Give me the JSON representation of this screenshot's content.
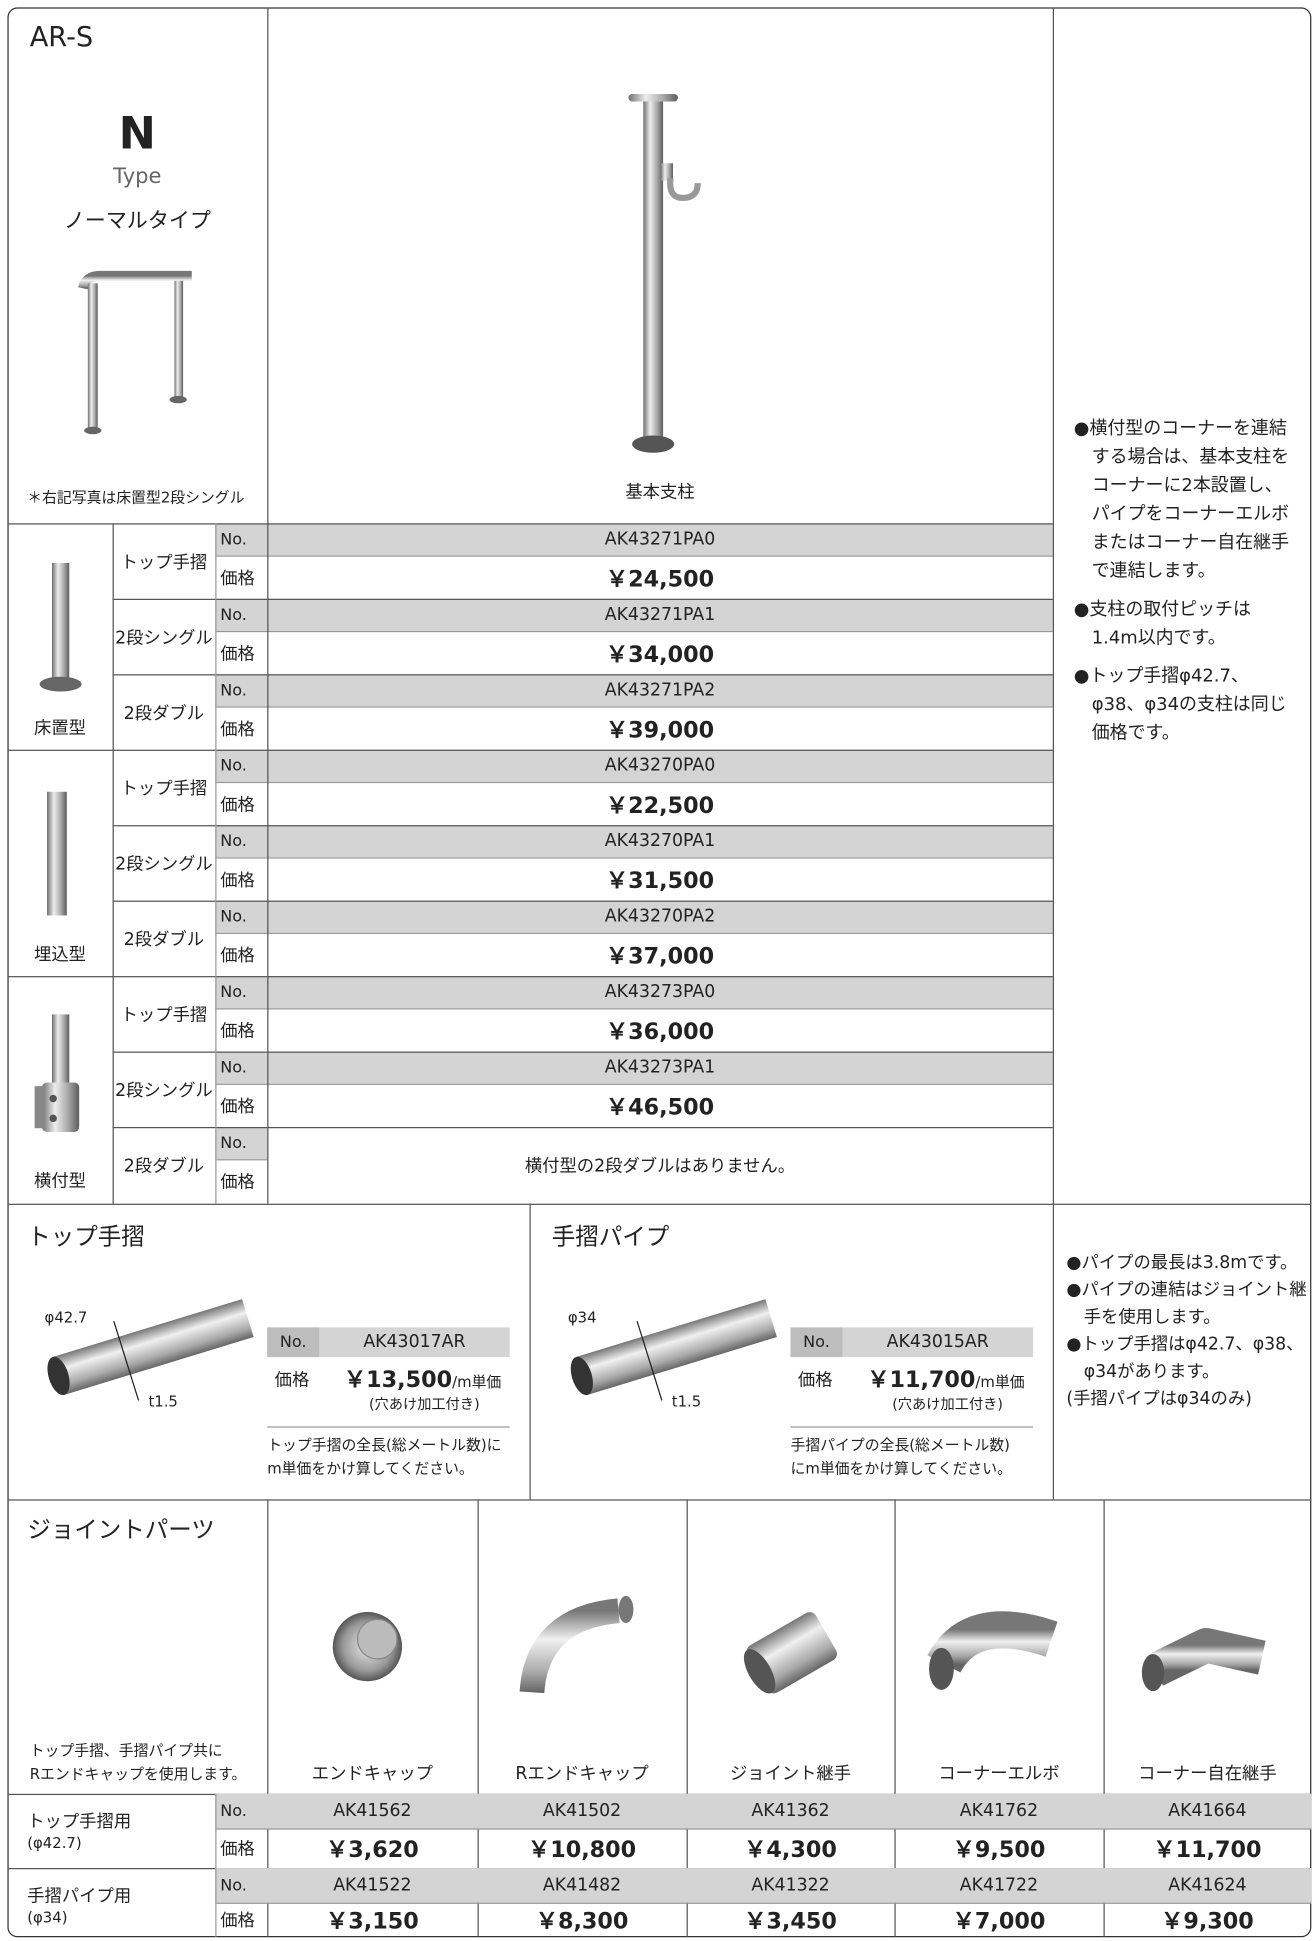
{
  "labels": {
    "no": "No.",
    "price": "価格"
  },
  "header": {
    "series": "AR-S",
    "type_letter": "N",
    "type_word": "Type",
    "type_name": "ノーマルタイプ",
    "photo_note": "＊右記写真は床置型2段シングル",
    "post_caption": "基本支柱"
  },
  "posts": {
    "groups": [
      {
        "name": "床置型",
        "rows": [
          {
            "name": "トップ手摺",
            "no": "AK43271PA0",
            "price": "￥24,500"
          },
          {
            "name": "2段シングル",
            "no": "AK43271PA1",
            "price": "￥34,000"
          },
          {
            "name": "2段ダブル",
            "no": "AK43271PA2",
            "price": "￥39,000"
          }
        ]
      },
      {
        "name": "埋込型",
        "rows": [
          {
            "name": "トップ手摺",
            "no": "AK43270PA0",
            "price": "￥22,500"
          },
          {
            "name": "2段シングル",
            "no": "AK43270PA1",
            "price": "￥31,500"
          },
          {
            "name": "2段ダブル",
            "no": "AK43270PA2",
            "price": "￥37,000"
          }
        ]
      },
      {
        "name": "横付型",
        "rows": [
          {
            "name": "トップ手摺",
            "no": "AK43273PA0",
            "price": "￥36,000"
          },
          {
            "name": "2段シングル",
            "no": "AK43273PA1",
            "price": "￥46,500"
          },
          {
            "name": "2段ダブル",
            "message": "横付型の2段ダブルはありません。"
          }
        ]
      }
    ]
  },
  "post_notes": [
    "●横付型のコーナーを連結する場合は、基本支柱をコーナーに2本設置し、パイプをコーナーエルボまたはコーナー自在継手で連結します。",
    "●支柱の取付ピッチは1.4m以内です。",
    "●トップ手摺φ42.7、φ38、φ34の支柱は同じ価格です。"
  ],
  "top_rail": {
    "title": "トップ手摺",
    "diameter": "φ42.7",
    "thickness": "t1.5",
    "no": "AK43017AR",
    "price": "￥13,500",
    "unit": "/m単価",
    "note": "(穴あけ加工付き)",
    "description": [
      "トップ手摺の全長(総メートル数)に",
      "m単価をかけ算してください。"
    ]
  },
  "pipe": {
    "title": "手摺パイプ",
    "diameter": "φ34",
    "thickness": "t1.5",
    "no": "AK43015AR",
    "price": "￥11,700",
    "unit": "/m単価",
    "note": "(穴あけ加工付き)",
    "description": [
      "手摺パイプの全長(総メートル数)",
      "にm単価をかけ算してください。"
    ]
  },
  "pipe_notes": [
    "●パイプの最長は3.8mです。",
    "●パイプの連結はジョイント継手を使用します。",
    "●トップ手摺はφ42.7、φ38、φ34があります。",
    "(手摺パイプはφ34のみ)"
  ],
  "joints": {
    "title": "ジョイントパーツ",
    "note": [
      "トップ手摺、手摺パイプ共に",
      "Rエンドキャップを使用します。"
    ],
    "parts": [
      "エンドキャップ",
      "Rエンドキャップ",
      "ジョイント継手",
      "コーナーエルボ",
      "コーナー自在継手"
    ],
    "rows": [
      {
        "name": "トップ手摺用",
        "spec": "(φ42.7)",
        "nos": [
          "AK41562",
          "AK41502",
          "AK41362",
          "AK41762",
          "AK41664"
        ],
        "prices": [
          "￥3,620",
          "￥10,800",
          "￥4,300",
          "￥9,500",
          "￥11,700"
        ]
      },
      {
        "name": "手摺パイプ用",
        "spec": "(φ34)",
        "nos": [
          "AK41522",
          "AK41482",
          "AK41322",
          "AK41722",
          "AK41624"
        ],
        "prices": [
          "￥3,150",
          "￥8,300",
          "￥3,450",
          "￥7,000",
          "￥9,300"
        ]
      }
    ]
  }
}
